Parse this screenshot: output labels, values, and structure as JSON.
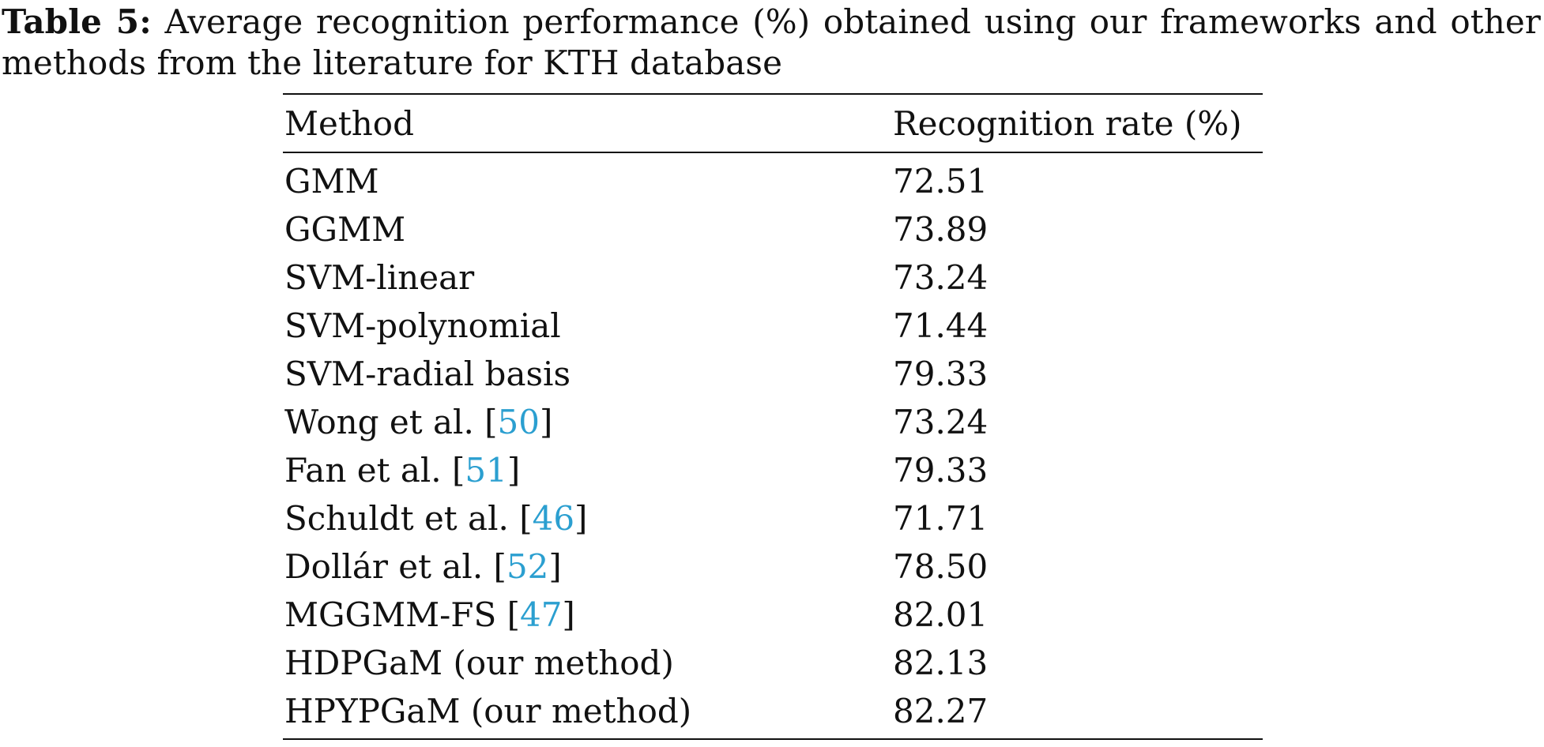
{
  "caption": {
    "label": "Table 5:",
    "text": "Average recognition performance (%) obtained using our frameworks and other methods from the literature for KTH database"
  },
  "table": {
    "headers": {
      "method": "Method",
      "rate": "Recognition rate (%)"
    },
    "rows": [
      {
        "method": "GMM",
        "ref": "",
        "suffix": "",
        "rate": "72.51"
      },
      {
        "method": "GGMM",
        "ref": "",
        "suffix": "",
        "rate": "73.89"
      },
      {
        "method": "SVM-linear",
        "ref": "",
        "suffix": "",
        "rate": "73.24"
      },
      {
        "method": "SVM-polynomial",
        "ref": "",
        "suffix": "",
        "rate": "71.44"
      },
      {
        "method": "SVM-radial basis",
        "ref": "",
        "suffix": "",
        "rate": "79.33"
      },
      {
        "method": "Wong et al. [",
        "ref": "50",
        "suffix": "]",
        "rate": "73.24"
      },
      {
        "method": "Fan et al. [",
        "ref": "51",
        "suffix": "]",
        "rate": "79.33"
      },
      {
        "method": "Schuldt et al. [",
        "ref": "46",
        "suffix": "]",
        "rate": "71.71"
      },
      {
        "method": "Dollár et al. [",
        "ref": "52",
        "suffix": "]",
        "rate": "78.50"
      },
      {
        "method": "MGGMM-FS [",
        "ref": "47",
        "suffix": "]",
        "rate": "82.01"
      },
      {
        "method": "HDPGaM (our method)",
        "ref": "",
        "suffix": "",
        "rate": "82.13"
      },
      {
        "method": "HPYPGaM (our method)",
        "ref": "",
        "suffix": "",
        "rate": "82.27"
      }
    ]
  },
  "colors": {
    "citation_link": "#2b9fd0",
    "text": "#111111"
  }
}
